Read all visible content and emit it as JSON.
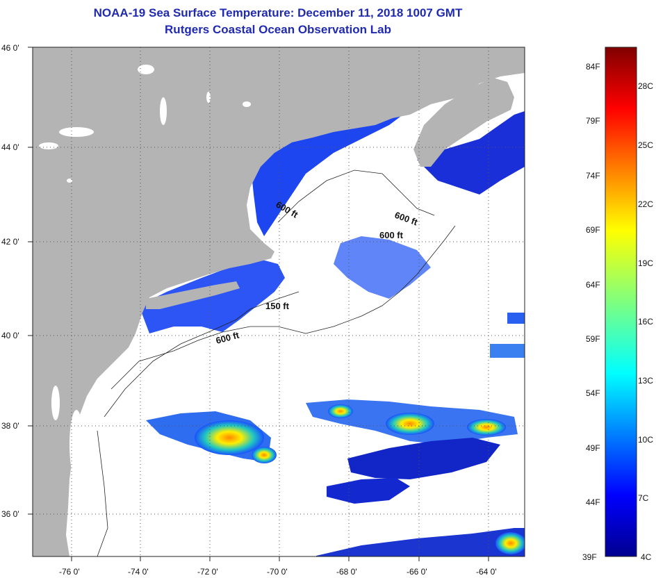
{
  "header": {
    "title": "NOAA-19 Sea Surface Temperature:  December 11, 2018 1007 GMT",
    "subtitle": "Rutgers Coastal Ocean Observation Lab"
  },
  "map": {
    "lat_labels": [
      "46 0'",
      "44 0'",
      "42 0'",
      "40 0'",
      "38 0'",
      "36 0'"
    ],
    "lon_labels": [
      "-76 0'",
      "-74 0'",
      "-72 0'",
      "-70 0'",
      "-68 0'",
      "-66 0'",
      "-64 0'"
    ],
    "lat_range": [
      35,
      46
    ],
    "lon_range": [
      -77,
      -63
    ],
    "isobath_labels": [
      "600 ft",
      "600 ft",
      "600 ft",
      "150 ft",
      "600 ft"
    ],
    "colors": {
      "land": "#b4b4b4",
      "cloud": "#ffffff",
      "cold_water": "#1a3cff"
    }
  },
  "colorbar": {
    "fahrenheit_labels": [
      "84F",
      "79F",
      "74F",
      "69F",
      "64F",
      "59F",
      "54F",
      "49F",
      "44F",
      "39F"
    ],
    "celsius_labels": [
      "28C",
      "25C",
      "22C",
      "19C",
      "16C",
      "13C",
      "10C",
      "7C",
      "4C"
    ],
    "range_c": [
      4,
      29
    ]
  }
}
